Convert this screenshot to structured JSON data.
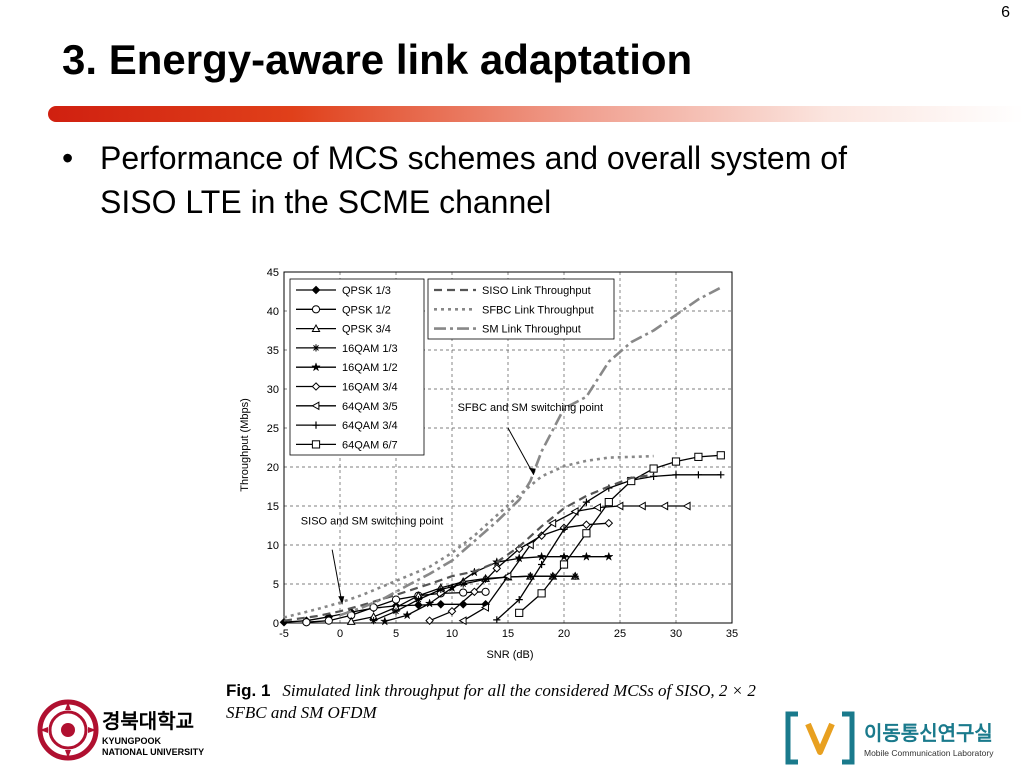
{
  "slide": {
    "page_number": "6",
    "title": "3. Energy-aware link adaptation",
    "bullet": "Performance of MCS schemes and overall system of SISO LTE in the SCME channel"
  },
  "figure": {
    "label": "Fig. 1",
    "caption": "Simulated link throughput for all the considered MCSs of SISO, 2 × 2 SFBC and SM OFDM"
  },
  "logos": {
    "left": {
      "name_korean": "경북대학교",
      "name_english_1": "KYUNGPOOK",
      "name_english_2": "NATIONAL UNIVERSITY"
    },
    "right": {
      "name_korean": "이동통신연구실",
      "name_english": "Mobile Communication Laboratory",
      "accent_color": "#e8a020",
      "bracket_color": "#1a7a8c"
    }
  },
  "chart_data": {
    "type": "line",
    "xlabel": "SNR (dB)",
    "ylabel": "Throughput (Mbps)",
    "xlim": [
      -5,
      35
    ],
    "ylim": [
      0,
      45
    ],
    "xticks": [
      -5,
      0,
      5,
      10,
      15,
      20,
      25,
      30,
      35
    ],
    "yticks": [
      0,
      5,
      10,
      15,
      20,
      25,
      30,
      35,
      40,
      45
    ],
    "grid": true,
    "legend_placement": "top-left",
    "series": [
      {
        "name": "QPSK 1/3",
        "style": "solid",
        "marker": "diamond",
        "x": [
          -5,
          -3,
          -1,
          1,
          3,
          5,
          7,
          9,
          11,
          13
        ],
        "y": [
          0.1,
          0.3,
          0.8,
          1.4,
          1.9,
          2.2,
          2.3,
          2.4,
          2.4,
          2.4
        ]
      },
      {
        "name": "QPSK 1/2",
        "style": "solid",
        "marker": "circle",
        "x": [
          -3,
          -1,
          1,
          3,
          5,
          7,
          9,
          11,
          13
        ],
        "y": [
          0.1,
          0.3,
          1.0,
          2.0,
          3.0,
          3.5,
          3.8,
          3.9,
          4.0
        ]
      },
      {
        "name": "QPSK 3/4",
        "style": "solid",
        "marker": "triangle",
        "x": [
          1,
          3,
          5,
          7,
          9,
          11,
          13,
          15,
          17,
          19,
          21
        ],
        "y": [
          0.2,
          0.8,
          2.0,
          3.5,
          4.5,
          5.3,
          5.7,
          5.9,
          6.0,
          6.0,
          6.0
        ]
      },
      {
        "name": "16QAM 1/3",
        "style": "solid",
        "marker": "asterisk",
        "x": [
          3,
          5,
          7,
          9,
          11,
          13,
          15,
          17,
          19,
          21
        ],
        "y": [
          0.3,
          1.5,
          3.0,
          4.3,
          5.0,
          5.6,
          5.9,
          6.0,
          6.0,
          6.0
        ]
      },
      {
        "name": "16QAM 1/2",
        "style": "solid",
        "marker": "star",
        "x": [
          4,
          6,
          8,
          10,
          12,
          14,
          16,
          18,
          20,
          22,
          24
        ],
        "y": [
          0.2,
          1.0,
          2.5,
          4.5,
          6.5,
          7.8,
          8.3,
          8.5,
          8.5,
          8.5,
          8.5
        ]
      },
      {
        "name": "16QAM 3/4",
        "style": "solid",
        "marker": "diamond-open",
        "x": [
          8,
          10,
          12,
          14,
          16,
          18,
          20,
          22,
          24
        ],
        "y": [
          0.3,
          1.5,
          4.0,
          7.0,
          9.5,
          11.2,
          12.2,
          12.6,
          12.8
        ]
      },
      {
        "name": "64QAM 3/5",
        "style": "solid",
        "marker": "triangle-left",
        "x": [
          11,
          13,
          15,
          17,
          19,
          21,
          23,
          25,
          27,
          29,
          31
        ],
        "y": [
          0.3,
          2.0,
          6.0,
          10.0,
          12.8,
          14.3,
          14.8,
          15.0,
          15.0,
          15.0,
          15.0
        ]
      },
      {
        "name": "64QAM 3/4",
        "style": "solid",
        "marker": "plus",
        "x": [
          14,
          16,
          18,
          20,
          22,
          24,
          26,
          28,
          30,
          32,
          34
        ],
        "y": [
          0.4,
          3.0,
          7.5,
          12.0,
          15.5,
          17.3,
          18.3,
          18.8,
          19.0,
          19.0,
          19.0
        ]
      },
      {
        "name": "64QAM 6/7",
        "style": "solid",
        "marker": "square",
        "x": [
          16,
          18,
          20,
          22,
          24,
          26,
          28,
          30,
          32,
          34
        ],
        "y": [
          1.3,
          3.8,
          7.5,
          11.5,
          15.5,
          18.2,
          19.8,
          20.7,
          21.3,
          21.5
        ]
      },
      {
        "name": "SISO Link Throughput",
        "style": "dashed",
        "marker": "none",
        "x": [
          -5,
          -2,
          0,
          2,
          5,
          8,
          10,
          12,
          14,
          16,
          18,
          20,
          22,
          24,
          26,
          28
        ],
        "y": [
          0.3,
          0.9,
          1.5,
          2.3,
          3.6,
          5.0,
          6.0,
          6.6,
          7.8,
          9.8,
          12.4,
          14.7,
          16.3,
          17.5,
          18.6,
          19.0
        ]
      },
      {
        "name": "SFBC Link Throughput",
        "style": "dotted",
        "marker": "none",
        "x": [
          -5,
          -2,
          0,
          2,
          5,
          8,
          10,
          12,
          14,
          16,
          18,
          20,
          22,
          24,
          26,
          28
        ],
        "y": [
          0.7,
          1.8,
          2.6,
          3.6,
          5.4,
          7.2,
          9.0,
          11.2,
          13.8,
          16.4,
          18.8,
          20.1,
          20.8,
          21.2,
          21.3,
          21.4
        ]
      },
      {
        "name": "SM Link Throughput",
        "style": "dashdot",
        "marker": "none",
        "x": [
          0,
          2,
          4,
          6,
          8,
          10,
          12,
          14,
          16,
          17,
          18,
          20,
          22,
          24,
          26,
          28,
          30,
          32,
          34
        ],
        "y": [
          1.0,
          2.0,
          3.2,
          4.8,
          6.3,
          8.0,
          10.5,
          13.0,
          15.8,
          18.2,
          22.0,
          27.5,
          29.0,
          33.5,
          36.0,
          37.5,
          39.5,
          41.5,
          43.0
        ]
      }
    ],
    "annotations": [
      {
        "text": "SFBC and SM switching point"
      },
      {
        "text": "SISO and SM switching point"
      }
    ]
  }
}
